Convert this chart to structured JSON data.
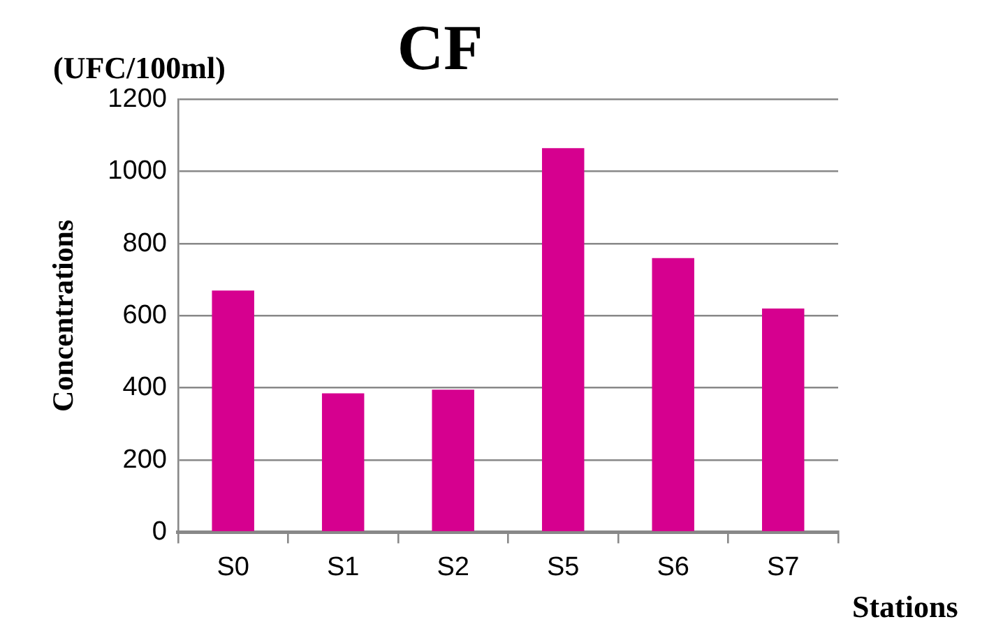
{
  "chart_data": {
    "type": "bar",
    "title": "CF",
    "ylabel": "Concentrations",
    "xlabel": "Stations",
    "annotations": [
      "(UFC/100ml)"
    ],
    "categories": [
      "S0",
      "S1",
      "S2",
      "S5",
      "S6",
      "S7"
    ],
    "values": [
      670,
      385,
      395,
      1065,
      760,
      620
    ],
    "color": "#d6008f",
    "ylim": [
      0,
      1200
    ],
    "yticks": [
      0,
      200,
      400,
      600,
      800,
      1000,
      1200
    ],
    "grid": "y"
  }
}
